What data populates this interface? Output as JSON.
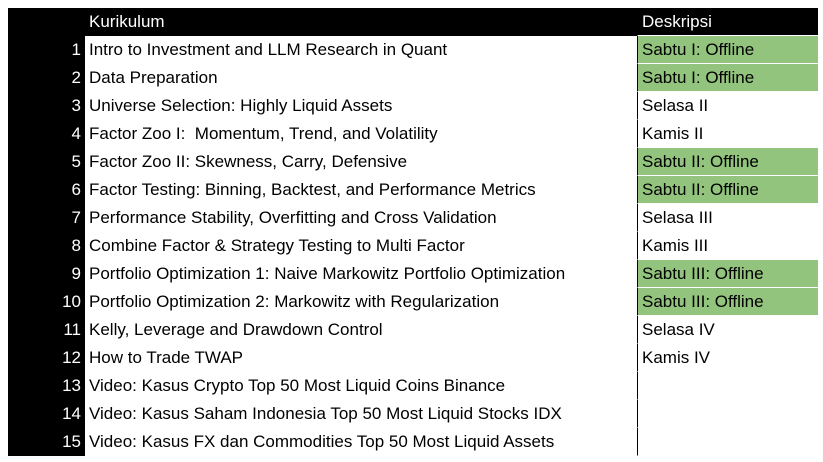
{
  "table": {
    "header": [
      "Kurikulum",
      "Deskripsi"
    ],
    "rows": [
      {
        "num": 1,
        "title": "Intro to Investment and LLM Research in Quant",
        "desc": "Sabtu I: Offline",
        "color": "#93c47d"
      },
      {
        "num": 2,
        "title": "Data Preparation",
        "desc": "Sabtu I: Offline",
        "color": "#93c47d"
      },
      {
        "num": 3,
        "title": "Universe Selection: Highly Liquid Assets",
        "desc": "Selasa II"
      },
      {
        "num": 4,
        "title": "Factor Zoo I:  Momentum, Trend, and Volatility",
        "desc": "Kamis II"
      },
      {
        "num": 5,
        "title": "Factor Zoo II: Skewness, Carry, Defensive",
        "desc": "Sabtu II: Offline",
        "color": "#93c47d"
      },
      {
        "num": 6,
        "title": "Factor Testing: Binning, Backtest, and Performance Metrics",
        "desc": "Sabtu II: Offline",
        "color": "#93c47d"
      },
      {
        "num": 7,
        "title": "Performance Stability, Overfitting and Cross Validation",
        "desc": "Selasa III"
      },
      {
        "num": 8,
        "title": "Combine Factor & Strategy Testing to Multi Factor",
        "desc": "Kamis III"
      },
      {
        "num": 9,
        "title": "Portfolio Optimization 1: Naive Markowitz Portfolio Optimization",
        "desc": "Sabtu III: Offline",
        "color": "#93c47d"
      },
      {
        "num": 10,
        "title": "Portfolio Optimization 2: Markowitz with Regularization",
        "desc": "Sabtu III: Offline",
        "color": "#93c47d"
      },
      {
        "num": 11,
        "title": "Kelly, Leverage and Drawdown Control",
        "desc": "Selasa IV"
      },
      {
        "num": 12,
        "title": "How to Trade TWAP",
        "desc": "Kamis IV"
      },
      {
        "num": 13,
        "title": "Video: Kasus Crypto Top 50 Most Liquid Coins Binance"
      },
      {
        "num": 14,
        "title": "Video: Kasus Saham Indonesia Top 50 Most Liquid Stocks IDX"
      },
      {
        "num": 15,
        "title": "Video: Kasus FX dan Commodities Top 50 Most Liquid Assets"
      }
    ]
  }
}
